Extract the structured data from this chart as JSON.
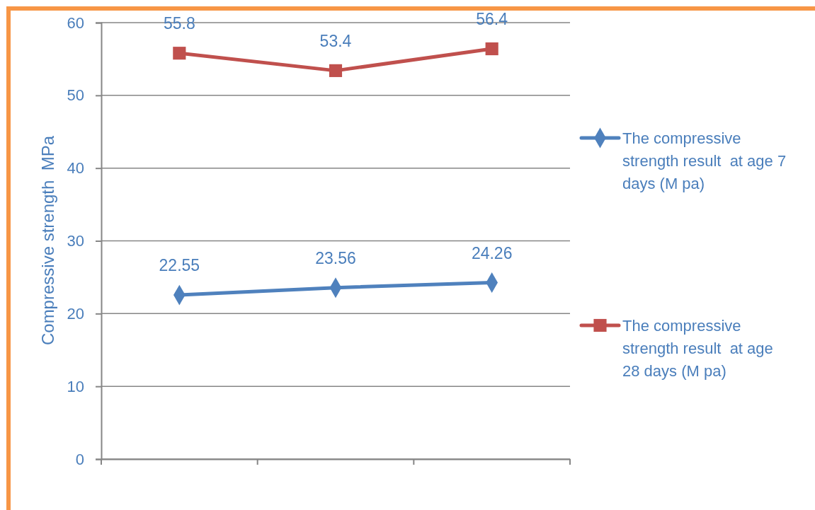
{
  "chart_data": {
    "type": "line",
    "ylabel": "Compressive strength  MPa",
    "categories": [
      null,
      null,
      null
    ],
    "series": [
      {
        "name": "The compressive strength result  at age 7 days (M pa)",
        "color": "#4f81bd",
        "marker": "diamond",
        "values": [
          22.55,
          23.56,
          24.26
        ]
      },
      {
        "name": "The compressive strength result  at age 28 days (M pa)",
        "color": "#c0504d",
        "marker": "square",
        "values": [
          55.8,
          53.4,
          56.4
        ]
      }
    ],
    "ylim": [
      0,
      60
    ],
    "yticks": [
      0,
      10,
      20,
      30,
      40,
      50,
      60
    ],
    "grid": "y",
    "legend": "right",
    "data_labels": true,
    "line_style": "solid"
  }
}
